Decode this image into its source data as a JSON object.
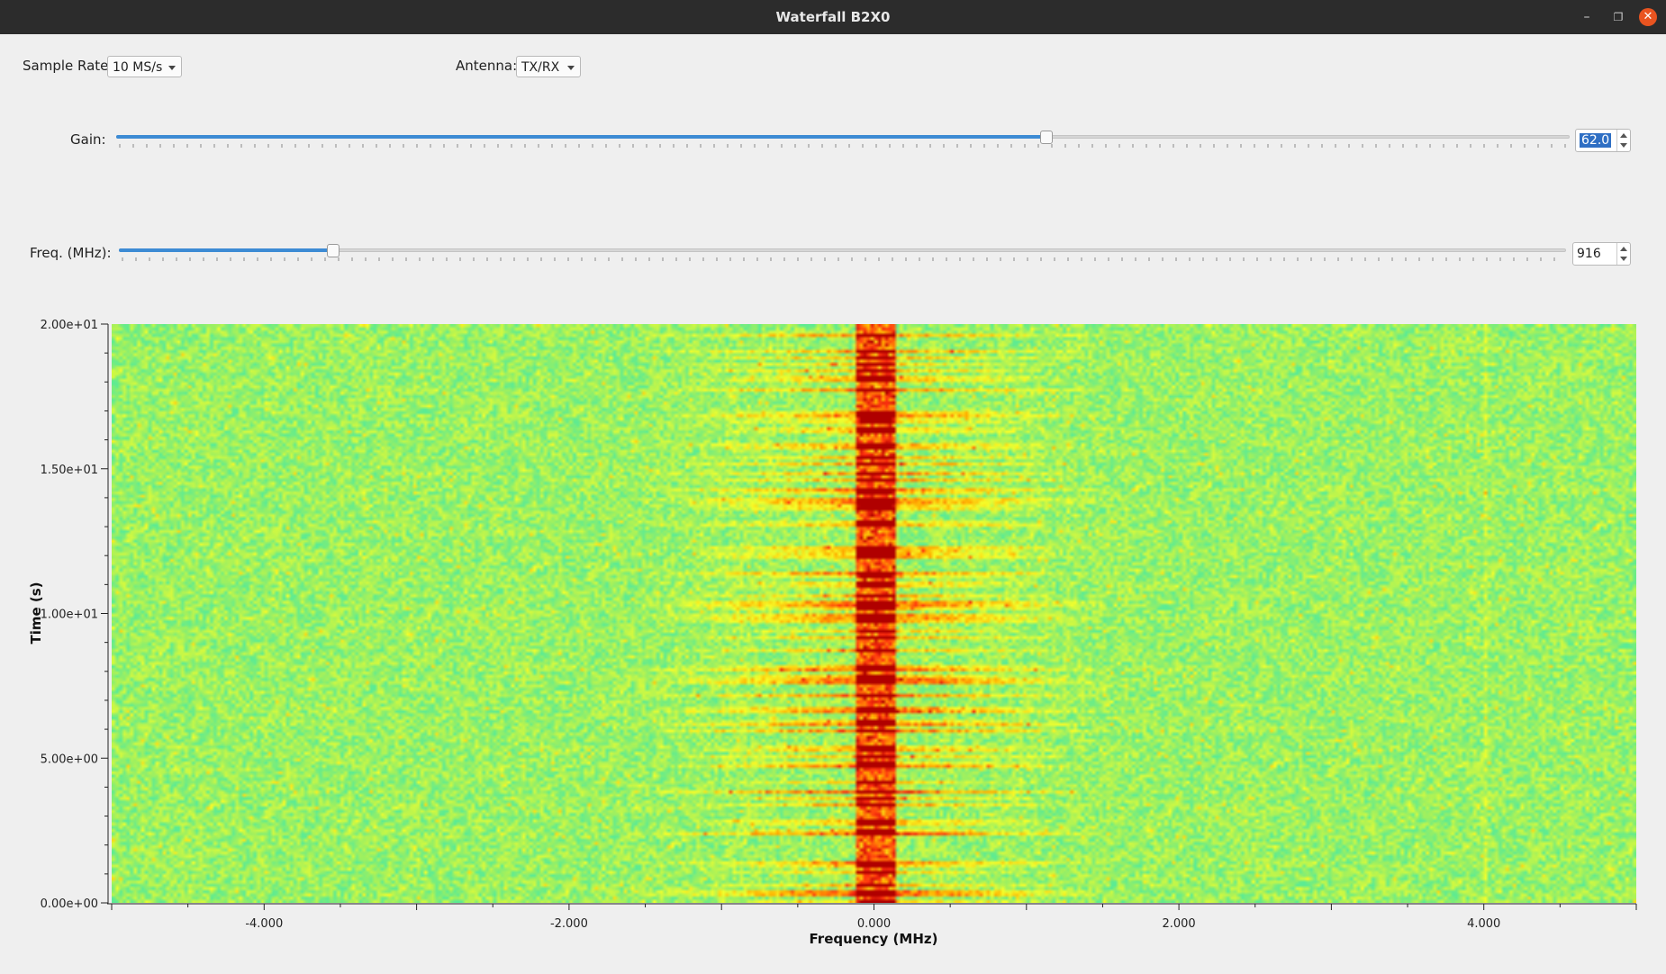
{
  "window": {
    "title": "Waterfall B2X0",
    "min_icon": "minimize-icon",
    "max_icon": "restore-icon",
    "close_icon": "close-icon"
  },
  "controls": {
    "sample_rate": {
      "label": "Sample Rate:",
      "value": "10 MS/s"
    },
    "antenna": {
      "label": "Antenna:",
      "value": "TX/RX"
    },
    "gain": {
      "label": "Gain:",
      "value": "62.0",
      "level_fraction": 0.64
    },
    "freq": {
      "label": "Freq. (MHz):",
      "value": "916",
      "level_fraction": 0.148
    }
  },
  "chart_data": {
    "type": "heatmap",
    "xlabel": "Frequency (MHz)",
    "ylabel": "Time (s)",
    "xlim": [
      -5.0,
      5.0
    ],
    "ylim": [
      0.0,
      20.0
    ],
    "x_ticks": [
      {
        "value": -4.0,
        "label": "-4.000"
      },
      {
        "value": -2.0,
        "label": "-2.000"
      },
      {
        "value": 0.0,
        "label": "0.000"
      },
      {
        "value": 2.0,
        "label": "2.000"
      },
      {
        "value": 4.0,
        "label": "4.000"
      }
    ],
    "y_ticks": [
      {
        "value": 0.0,
        "label": "0.00e+00"
      },
      {
        "value": 5.0,
        "label": "5.00e+00"
      },
      {
        "value": 10.0,
        "label": "1.00e+01"
      },
      {
        "value": 15.0,
        "label": "1.50e+01"
      },
      {
        "value": 20.0,
        "label": "2.00e+01"
      }
    ],
    "colormap": [
      "#00d8ff",
      "#38e8b0",
      "#9ef060",
      "#f6ff2a",
      "#ffb000",
      "#ff3010",
      "#b00000"
    ],
    "signal_center_mhz": 0.0
  }
}
